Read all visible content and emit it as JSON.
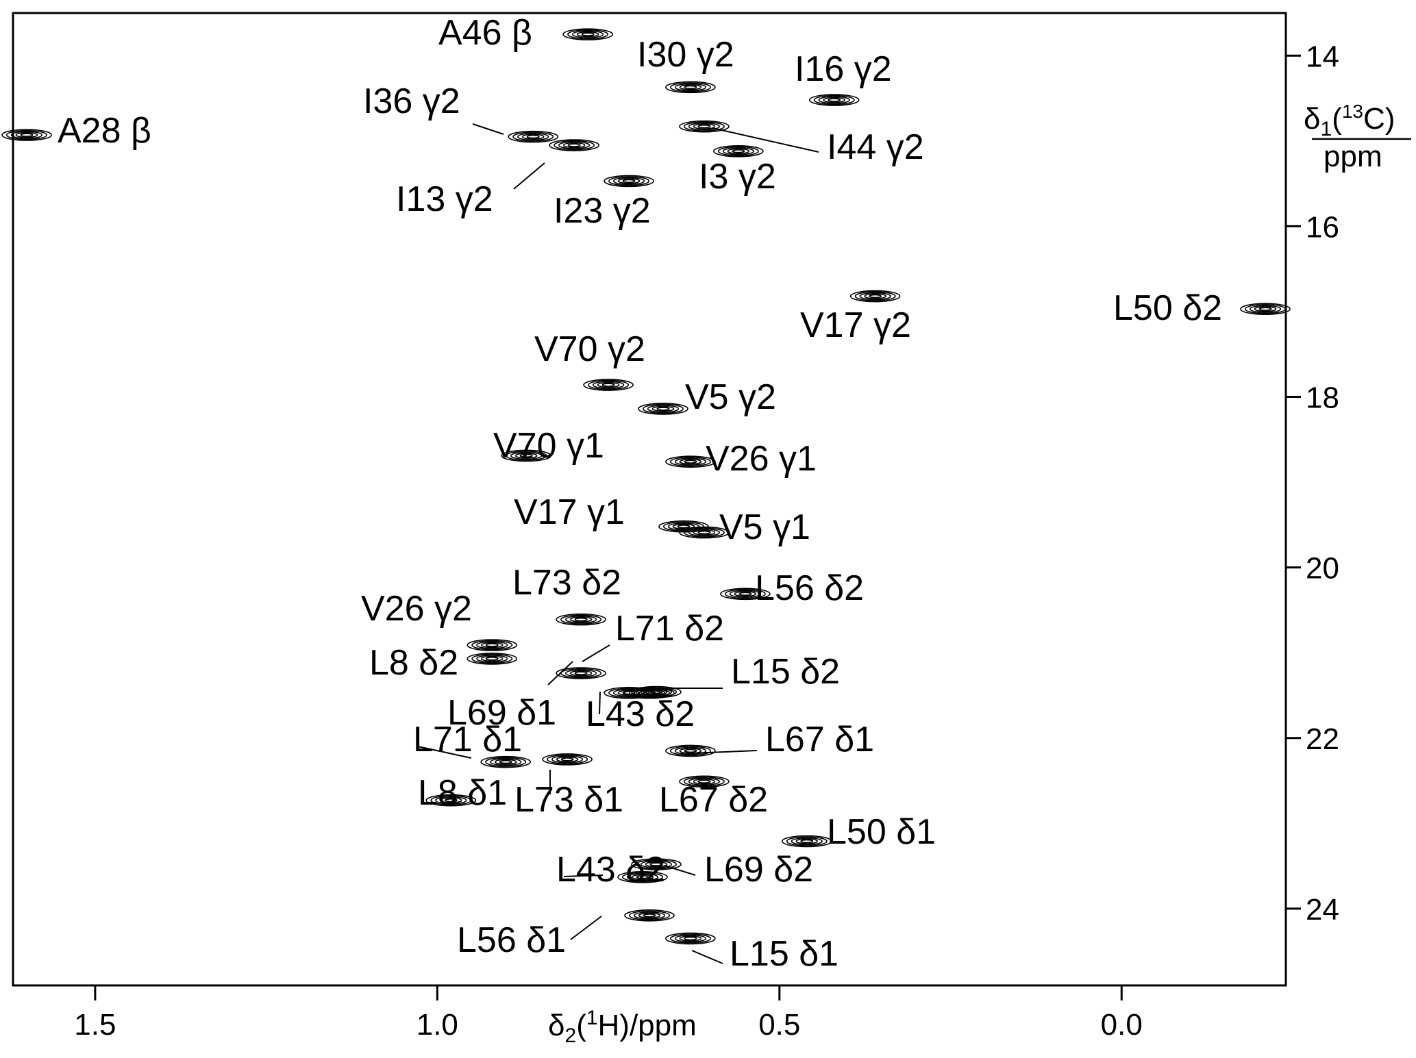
{
  "chart_data": {
    "type": "scatter",
    "xlabel": {
      "main": "δ",
      "sub": "2",
      "open": "(",
      "sup": "1",
      "rest": "H)/ppm"
    },
    "ylabel": {
      "main": "δ",
      "sub": "1",
      "open": "(",
      "sup": "13",
      "rest": "C)",
      "unit": "ppm"
    },
    "xlim": [
      1.62,
      -0.24
    ],
    "ylim": [
      13.5,
      24.9
    ],
    "x_ticks": [
      1.5,
      1.0,
      0.5,
      0.0
    ],
    "x_tick_labels": [
      "1.5",
      "1.0",
      "0.5",
      "0.0"
    ],
    "y_ticks": [
      14,
      16,
      18,
      20,
      22,
      24
    ],
    "y_tick_labels": [
      "14",
      "16",
      "18",
      "20",
      "22",
      "24"
    ],
    "peaks": [
      {
        "label": "A46 β",
        "x": 0.78,
        "y": 13.75
      },
      {
        "label": "I30 γ2",
        "x": 0.63,
        "y": 14.37
      },
      {
        "label": "I16 γ2",
        "x": 0.42,
        "y": 14.52
      },
      {
        "label": "A28 β",
        "x": 1.6,
        "y": 14.93
      },
      {
        "label": "I36 γ2",
        "x": 0.86,
        "y": 14.95
      },
      {
        "label": "I13 γ2",
        "x": 0.8,
        "y": 15.05
      },
      {
        "label": "I44 γ2",
        "x": 0.61,
        "y": 14.83
      },
      {
        "label": "I3 γ2",
        "x": 0.56,
        "y": 15.12
      },
      {
        "label": "I23 γ2",
        "x": 0.72,
        "y": 15.47
      },
      {
        "label": "V17 γ2",
        "x": 0.36,
        "y": 16.82
      },
      {
        "label": "L50 δ2",
        "x": -0.21,
        "y": 16.97
      },
      {
        "label": "V70 γ2",
        "x": 0.75,
        "y": 17.86
      },
      {
        "label": "V5 γ2",
        "x": 0.67,
        "y": 18.14
      },
      {
        "label": "V70 γ1",
        "x": 0.87,
        "y": 18.69
      },
      {
        "label": "V26 γ1",
        "x": 0.63,
        "y": 18.76
      },
      {
        "label": "V17 γ1",
        "x": 0.64,
        "y": 19.52
      },
      {
        "label": "V5 γ1",
        "x": 0.61,
        "y": 19.59
      },
      {
        "label": "L56 δ2",
        "x": 0.55,
        "y": 20.31
      },
      {
        "label": "L73 δ2",
        "x": 0.79,
        "y": 20.61
      },
      {
        "label": "V26 γ2",
        "x": 0.92,
        "y": 20.91
      },
      {
        "label": "L8 δ2",
        "x": 0.92,
        "y": 21.07
      },
      {
        "label": "L71 δ2",
        "x": 0.79,
        "y": 21.24
      },
      {
        "label": "L69 δ1",
        "x": 0.72,
        "y": 21.47
      },
      {
        "label": "L15 δ2",
        "x": 0.68,
        "y": 21.46
      },
      {
        "label": "L43 δ2",
        "x": 0.69,
        "y": 21.47
      },
      {
        "label": "L67 δ1",
        "x": 0.63,
        "y": 22.15
      },
      {
        "label": "L71 δ1",
        "x": 0.9,
        "y": 22.28
      },
      {
        "label": "L73 δ1",
        "x": 0.81,
        "y": 22.25
      },
      {
        "label": "L67 δ2",
        "x": 0.61,
        "y": 22.51
      },
      {
        "label": "L8 δ1",
        "x": 0.98,
        "y": 22.73
      },
      {
        "label": "L50 δ1",
        "x": 0.46,
        "y": 23.21
      },
      {
        "label": "L69 δ2",
        "x": 0.68,
        "y": 23.48
      },
      {
        "label": "L43 δ2",
        "x": 0.7,
        "y": 23.63
      },
      {
        "label": "L56 δ1",
        "x": 0.69,
        "y": 24.08
      },
      {
        "label": "L15 δ1",
        "x": 0.63,
        "y": 24.35
      }
    ]
  }
}
